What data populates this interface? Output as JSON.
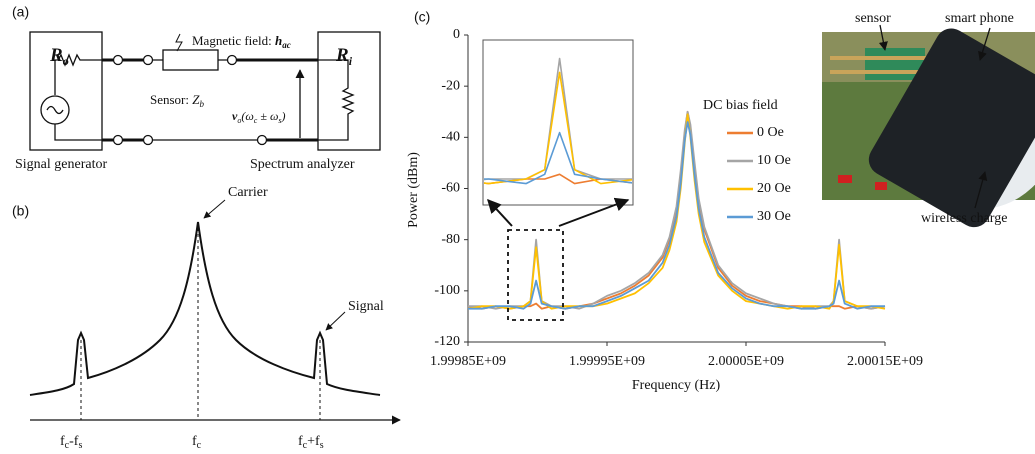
{
  "panel_labels": [
    "(a)",
    "(b)",
    "(c)"
  ],
  "circuit": {
    "source": {
      "symbol": "R",
      "sub": "o"
    },
    "load": {
      "symbol": "R",
      "sub": "i"
    },
    "field": {
      "text": "Magnetic field: ",
      "symbol": "h",
      "sub": "ac"
    },
    "sensor": {
      "text": "Sensor: ",
      "symbol": "Z",
      "sub": "b"
    },
    "voltage": {
      "symbol": "v",
      "sub": "o",
      "rest": "(ω",
      "sub2": "c",
      "mid": " ± ω",
      "sub3": "s",
      "end": ")"
    },
    "left_caption": "Signal generator",
    "right_caption": "Spectrum analyzer"
  },
  "spectrum_sketch": {
    "carrier": "Carrier",
    "signal": "Signal",
    "ticks": [
      {
        "base": "f",
        "sub": "c",
        "rest": "-f",
        "sub2": "s"
      },
      {
        "base": "f",
        "sub": "c"
      },
      {
        "base": "f",
        "sub": "c",
        "rest": "+f",
        "sub2": "s"
      }
    ]
  },
  "photo": {
    "labels": [
      "sensor",
      "smart phone",
      "wireless charge"
    ]
  },
  "chart_data": {
    "type": "line",
    "x_label": "Frequency (Hz)",
    "y_label": "Power (dBm)",
    "legend_title": "DC bias field",
    "legend": "right",
    "xlim": [
      1999850000,
      2000150000
    ],
    "ylim": [
      -120,
      0
    ],
    "xticks": [
      {
        "value": 1999850000,
        "label": "1.99985E+09"
      },
      {
        "value": 1999950000,
        "label": "1.99995E+09"
      },
      {
        "value": 2000050000,
        "label": "2.00005E+09"
      },
      {
        "value": 2000150000,
        "label": "2.00015E+09"
      }
    ],
    "yticks": [
      -120,
      -100,
      -80,
      -60,
      -40,
      -20,
      0
    ],
    "x": [
      1999850000,
      1999860000,
      1999870000,
      1999880000,
      1999890000,
      1999895000,
      1999899000,
      1999903000,
      1999910000,
      1999920000,
      1999930000,
      1999940000,
      1999950000,
      1999960000,
      1999970000,
      1999980000,
      1999990000,
      1999995000,
      2000000000,
      2000003000,
      2000006000,
      2000008000,
      2000010000,
      2000013000,
      2000016000,
      2000020000,
      2000030000,
      2000040000,
      2000050000,
      2000060000,
      2000070000,
      2000080000,
      2000090000,
      2000100000,
      2000110000,
      2000113000,
      2000117000,
      2000121000,
      2000130000,
      2000140000,
      2000150000
    ],
    "series": [
      {
        "name": "0 Oe",
        "color": "#ed7d31",
        "values": [
          -106,
          -107,
          -106,
          -107,
          -106,
          -106,
          -105,
          -107,
          -106,
          -107,
          -106,
          -105,
          -103,
          -101,
          -98,
          -94,
          -87,
          -80,
          -68,
          -55,
          -38,
          -30,
          -36,
          -52,
          -65,
          -76,
          -91,
          -98,
          -102,
          -104,
          -105,
          -106,
          -106,
          -107,
          -106,
          -106,
          -106,
          -107,
          -106,
          -107,
          -106
        ]
      },
      {
        "name": "10 Oe",
        "color": "#a5a5a5",
        "values": [
          -106,
          -106,
          -107,
          -106,
          -106,
          -104,
          -80,
          -104,
          -106,
          -106,
          -107,
          -105,
          -102,
          -100,
          -97,
          -93,
          -86,
          -79,
          -67,
          -53,
          -37,
          -30,
          -35,
          -50,
          -64,
          -75,
          -90,
          -97,
          -101,
          -103,
          -105,
          -106,
          -107,
          -106,
          -106,
          -104,
          -80,
          -104,
          -106,
          -107,
          -106
        ]
      },
      {
        "name": "20 Oe",
        "color": "#ffc000",
        "values": [
          -107,
          -106,
          -106,
          -107,
          -106,
          -104,
          -83,
          -104,
          -107,
          -106,
          -106,
          -106,
          -105,
          -103,
          -101,
          -97,
          -91,
          -84,
          -73,
          -60,
          -42,
          -31,
          -40,
          -57,
          -70,
          -81,
          -94,
          -100,
          -104,
          -105,
          -106,
          -107,
          -106,
          -106,
          -107,
          -104,
          -82,
          -104,
          -106,
          -106,
          -107
        ]
      },
      {
        "name": "30 Oe",
        "color": "#5b9bd5",
        "values": [
          -107,
          -107,
          -106,
          -106,
          -107,
          -105,
          -96,
          -105,
          -106,
          -107,
          -106,
          -106,
          -104,
          -102,
          -99,
          -96,
          -89,
          -82,
          -71,
          -58,
          -41,
          -34,
          -39,
          -55,
          -68,
          -79,
          -93,
          -99,
          -103,
          -105,
          -106,
          -106,
          -107,
          -107,
          -106,
          -105,
          -96,
          -105,
          -107,
          -106,
          -106
        ]
      }
    ]
  }
}
